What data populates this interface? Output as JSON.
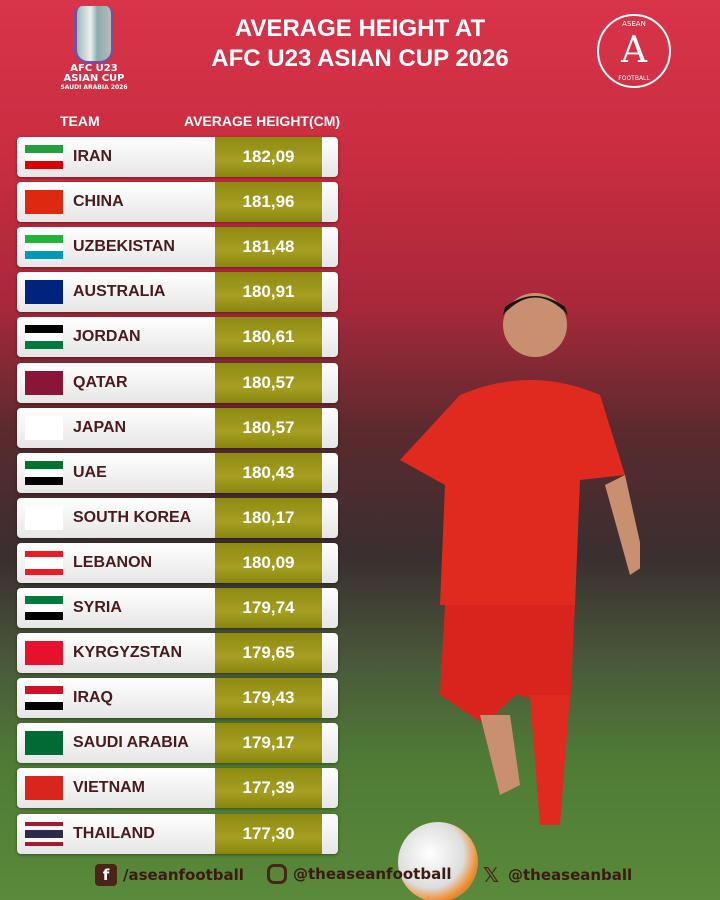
{
  "header": {
    "title_line1": "AVERAGE HEIGHT AT",
    "title_line2": "AFC U23 ASIAN CUP 2026",
    "event_logo": {
      "line1": "AFC U23",
      "line2": "ASIAN CUP",
      "line3": "SAUDI ARABIA 2026"
    },
    "brand_logo": {
      "top": "ASEAN",
      "letter": "A",
      "bottom": "FOOTBALL"
    }
  },
  "columns": {
    "team": "TEAM",
    "height": "AVERAGE HEIGHT(CM)"
  },
  "rows": [
    {
      "team": "IRAN",
      "height": "182,09",
      "flag": [
        "#239f40",
        "#ffffff",
        "#da0000"
      ]
    },
    {
      "team": "CHINA",
      "height": "181,96",
      "flag": [
        "#de2910"
      ]
    },
    {
      "team": "UZBEKISTAN",
      "height": "181,48",
      "flag": [
        "#1eb53a",
        "#ffffff",
        "#0099b5"
      ]
    },
    {
      "team": "AUSTRALIA",
      "height": "180,91",
      "flag": [
        "#00247d"
      ]
    },
    {
      "team": "JORDAN",
      "height": "180,61",
      "flag": [
        "#000000",
        "#ffffff",
        "#007a3d"
      ]
    },
    {
      "team": "QATAR",
      "height": "180,57",
      "flag": [
        "#8a1538"
      ]
    },
    {
      "team": "JAPAN",
      "height": "180,57",
      "flag": [
        "#ffffff"
      ]
    },
    {
      "team": "UAE",
      "height": "180,43",
      "flag": [
        "#00732f",
        "#ffffff",
        "#000000"
      ]
    },
    {
      "team": "SOUTH KOREA",
      "height": "180,17",
      "flag": [
        "#ffffff"
      ]
    },
    {
      "team": "LEBANON",
      "height": "180,09",
      "flag": [
        "#ed1c24",
        "#ffffff",
        "#ffffff",
        "#ed1c24"
      ]
    },
    {
      "team": "SYRIA",
      "height": "179,74",
      "flag": [
        "#007a3d",
        "#ffffff",
        "#000000"
      ]
    },
    {
      "team": "KYRGYZSTAN",
      "height": "179,65",
      "flag": [
        "#e8112d"
      ]
    },
    {
      "team": "IRAQ",
      "height": "179,43",
      "flag": [
        "#ce1126",
        "#ffffff",
        "#000000"
      ]
    },
    {
      "team": "SAUDI ARABIA",
      "height": "179,17",
      "flag": [
        "#006c35"
      ]
    },
    {
      "team": "VIETNAM",
      "height": "177,39",
      "flag": [
        "#da251d"
      ]
    },
    {
      "team": "THAILAND",
      "height": "177,30",
      "flag": [
        "#a51931",
        "#f4f5f8",
        "#2d2a4a",
        "#2d2a4a",
        "#f4f5f8",
        "#a51931"
      ]
    }
  ],
  "social": {
    "facebook": "/aseanfootball",
    "instagram": "@theaseanfootball",
    "x": "@theaseanball"
  },
  "colors": {
    "background": "#d8344a",
    "value_box": "#9a9418",
    "team_text": "#4a1a1e"
  }
}
